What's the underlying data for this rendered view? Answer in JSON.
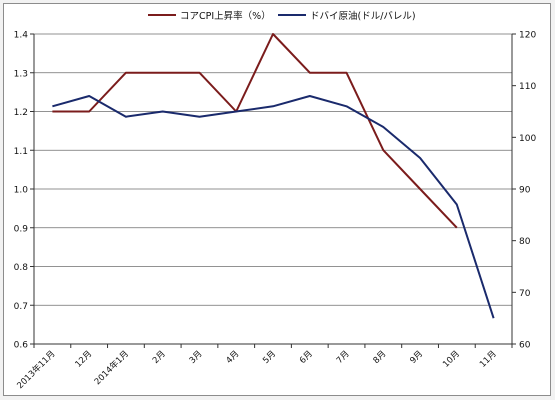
{
  "chart_data": {
    "type": "line",
    "categories": [
      "2013年11月",
      "12月",
      "2014年1月",
      "2月",
      "3月",
      "4月",
      "5月",
      "6月",
      "7月",
      "8月",
      "9月",
      "10月",
      "11月"
    ],
    "series": [
      {
        "name": "コアCPI上昇率（%）",
        "axis": "left",
        "color": "#7b1c1c",
        "values": [
          1.2,
          1.2,
          1.3,
          1.3,
          1.3,
          1.2,
          1.4,
          1.3,
          1.3,
          1.1,
          1.0,
          0.9,
          null
        ]
      },
      {
        "name": "ドバイ原油(ドル/バレル)",
        "axis": "right",
        "color": "#1a2a6c",
        "values": [
          106,
          108,
          104,
          105,
          104,
          105,
          106,
          108,
          106,
          102,
          96,
          87,
          65
        ]
      }
    ],
    "left_axis": {
      "min": 0.6,
      "max": 1.4,
      "ticks": [
        "0.6",
        "0.7",
        "0.8",
        "0.9",
        "1.0",
        "1.1",
        "1.2",
        "1.3",
        "1.4"
      ]
    },
    "right_axis": {
      "min": 60,
      "max": 120,
      "ticks": [
        "60",
        "70",
        "80",
        "90",
        "100",
        "110",
        "120"
      ]
    },
    "grid": true,
    "legend_position": "top-center"
  }
}
